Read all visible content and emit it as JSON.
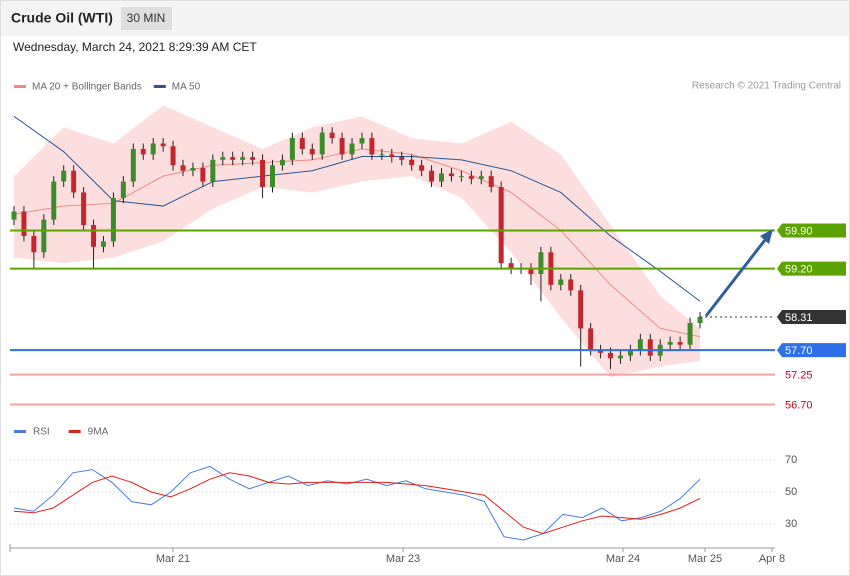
{
  "header": {
    "title": "Crude Oil (WTI)",
    "timeframe": "30 MIN",
    "timestamp": "Wednesday, March 24, 2021 8:29:39 AM CET"
  },
  "chart_data": [
    {
      "type": "candlestick",
      "credit": "Research © 2021 Trading Central",
      "up_color": "#3d8b2a",
      "down_color": "#c4262e",
      "ylim": [
        56.6,
        62.3
      ],
      "open": [
        60.1,
        60.25,
        59.8,
        59.5,
        60.1,
        60.8,
        61.0,
        60.6,
        60.0,
        59.6,
        59.7,
        60.5,
        60.8,
        61.4,
        61.3,
        61.5,
        61.45,
        61.1,
        61.0,
        61.05,
        60.8,
        61.2,
        61.25,
        61.2,
        61.25,
        61.2,
        60.7,
        61.1,
        61.2,
        61.6,
        61.4,
        61.3,
        61.7,
        61.6,
        61.3,
        61.5,
        61.6,
        61.3,
        61.3,
        61.25,
        61.2,
        61.1,
        61.0,
        60.8,
        60.95,
        60.9,
        60.9,
        60.85,
        60.9,
        60.7,
        59.3,
        59.2,
        59.2,
        59.1,
        59.5,
        58.9,
        59.0,
        58.8,
        58.1,
        57.7,
        57.65,
        57.55,
        57.6,
        57.7,
        57.9,
        57.6,
        57.8,
        57.85,
        57.8,
        58.2
      ],
      "high": [
        60.35,
        60.35,
        59.9,
        60.2,
        60.9,
        61.1,
        61.1,
        60.7,
        60.1,
        59.8,
        60.6,
        60.9,
        61.5,
        61.5,
        61.6,
        61.6,
        61.55,
        61.2,
        61.15,
        61.15,
        61.3,
        61.35,
        61.35,
        61.35,
        61.35,
        61.3,
        61.2,
        61.3,
        61.7,
        61.7,
        61.5,
        61.8,
        61.8,
        61.7,
        61.6,
        61.7,
        61.7,
        61.4,
        61.4,
        61.35,
        61.3,
        61.2,
        61.1,
        61.05,
        61.05,
        61.0,
        61.0,
        61.0,
        61.0,
        60.8,
        59.4,
        59.3,
        59.3,
        59.6,
        59.6,
        59.1,
        59.1,
        58.9,
        58.2,
        57.8,
        57.75,
        57.7,
        57.8,
        58.0,
        58.0,
        57.9,
        57.95,
        57.95,
        58.3,
        58.4
      ],
      "low": [
        60.0,
        59.7,
        59.2,
        59.4,
        60.0,
        60.7,
        60.5,
        59.9,
        59.2,
        59.5,
        59.6,
        60.4,
        60.7,
        61.2,
        61.2,
        61.35,
        61.0,
        60.9,
        60.9,
        60.7,
        60.7,
        61.1,
        61.1,
        61.1,
        61.1,
        60.5,
        60.6,
        61.0,
        61.1,
        61.3,
        61.2,
        61.2,
        61.5,
        61.2,
        61.2,
        61.4,
        61.2,
        61.2,
        61.15,
        61.1,
        61.0,
        60.9,
        60.7,
        60.7,
        60.8,
        60.8,
        60.75,
        60.75,
        60.6,
        59.2,
        59.1,
        59.1,
        58.9,
        58.6,
        58.8,
        58.8,
        58.7,
        57.4,
        57.6,
        57.55,
        57.35,
        57.45,
        57.5,
        57.6,
        57.5,
        57.5,
        57.7,
        57.7,
        57.7,
        58.1
      ],
      "close": [
        60.25,
        59.8,
        59.5,
        60.1,
        60.8,
        61.0,
        60.6,
        60.0,
        59.6,
        59.7,
        60.5,
        60.8,
        61.4,
        61.3,
        61.5,
        61.45,
        61.1,
        61.0,
        61.05,
        60.8,
        61.2,
        61.25,
        61.2,
        61.25,
        61.2,
        60.7,
        61.1,
        61.2,
        61.6,
        61.4,
        61.3,
        61.7,
        61.6,
        61.3,
        61.5,
        61.6,
        61.3,
        61.3,
        61.25,
        61.2,
        61.1,
        61.0,
        60.8,
        60.95,
        60.9,
        60.9,
        60.85,
        60.9,
        60.7,
        59.3,
        59.2,
        59.2,
        59.1,
        59.5,
        58.9,
        59.0,
        58.8,
        58.1,
        57.7,
        57.65,
        57.55,
        57.6,
        57.7,
        57.9,
        57.6,
        57.8,
        57.85,
        57.8,
        58.2,
        58.31
      ],
      "series": [
        {
          "name": "MA 20 + Bollinger Bands",
          "color": "#f08a80",
          "band_color": "#fddede",
          "x": [
            0,
            5,
            10,
            15,
            20,
            25,
            30,
            35,
            40,
            45,
            50,
            55,
            60,
            65,
            69
          ],
          "values": [
            60.2,
            60.35,
            60.4,
            60.9,
            61.1,
            61.15,
            61.2,
            61.4,
            61.3,
            61.0,
            60.6,
            59.9,
            58.9,
            58.1,
            57.95
          ],
          "upper": [
            60.9,
            61.8,
            61.5,
            62.2,
            61.8,
            61.4,
            61.8,
            62.0,
            61.6,
            61.5,
            61.9,
            61.3,
            60.0,
            58.7,
            58.1
          ],
          "lower": [
            59.4,
            59.3,
            59.4,
            59.7,
            60.3,
            60.7,
            60.6,
            60.8,
            60.9,
            60.5,
            59.5,
            58.3,
            57.2,
            57.4,
            57.5
          ]
        },
        {
          "name": "MA 50",
          "color": "#2b5797",
          "x": [
            0,
            5,
            10,
            15,
            20,
            25,
            30,
            35,
            40,
            45,
            50,
            55,
            60,
            65,
            69
          ],
          "values": [
            62.0,
            61.35,
            60.45,
            60.35,
            60.8,
            60.9,
            61.0,
            61.26,
            61.26,
            61.2,
            61.0,
            60.6,
            59.8,
            59.15,
            58.6
          ]
        }
      ],
      "levels": [
        {
          "value": 59.9,
          "label": "59.90",
          "color": "#5aa300",
          "label_box": true,
          "dotted": false
        },
        {
          "value": 59.2,
          "label": "59.20",
          "color": "#5aa300",
          "label_box": true,
          "dotted": false
        },
        {
          "value": 58.31,
          "color": "#333333",
          "label_box": true,
          "dotted": true
        },
        {
          "value": 57.7,
          "label": "57.70",
          "color": "#2f6fe8",
          "label_box": true,
          "dotted": false
        },
        {
          "value": 57.25,
          "color": "#f4a3a3",
          "label_color": "#d0021b",
          "label_box": false,
          "dotted": false
        },
        {
          "value": 56.7,
          "label": "56.70",
          "color": "#f4a3a3",
          "label_color": "#d0021b",
          "label_box": false,
          "dotted": false
        }
      ]
    },
    {
      "type": "line",
      "ylim": [
        20,
        80
      ],
      "yticks": [
        30,
        50,
        70
      ],
      "grid": true,
      "x_labels": [
        "Mar 21",
        "Mar 23",
        "Mar 24",
        "Mar 25",
        "Apr 8"
      ],
      "series": [
        {
          "name": "RSI",
          "color": "#4a7bd8",
          "values": [
            40,
            38,
            48,
            62,
            64,
            56,
            44,
            42,
            50,
            62,
            66,
            58,
            52,
            56,
            60,
            54,
            57,
            55,
            58,
            54,
            57,
            52,
            50,
            48,
            44,
            22,
            20,
            24,
            36,
            34,
            40,
            32,
            34,
            38,
            46,
            58
          ]
        },
        {
          "name": "9MA",
          "color": "#e0201b",
          "values": [
            38,
            37,
            40,
            48,
            56,
            60,
            56,
            50,
            47,
            52,
            58,
            62,
            60,
            56,
            55,
            56,
            56,
            56,
            56,
            56,
            55,
            54,
            52,
            50,
            48,
            38,
            28,
            24,
            28,
            32,
            35,
            34,
            33,
            36,
            40,
            46
          ]
        }
      ]
    }
  ]
}
